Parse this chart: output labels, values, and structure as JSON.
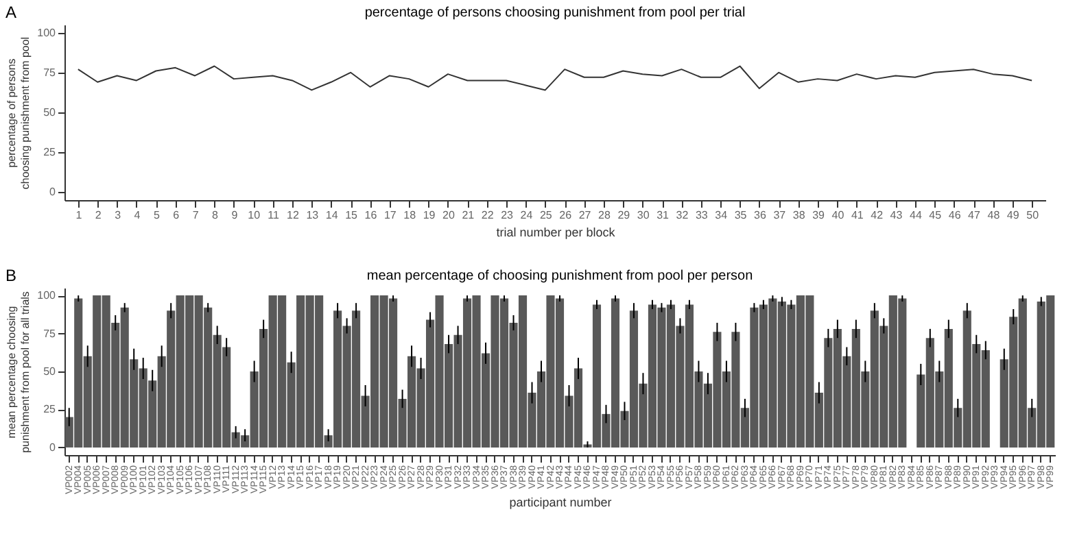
{
  "chart_data": [
    {
      "type": "line",
      "title": "percentage of persons choosing punishment from pool per trial",
      "xlabel": "trial number per block",
      "ylabel": "percentage of persons choosing punishment from pool",
      "annotations": [
        "A"
      ],
      "x": [
        1,
        2,
        3,
        4,
        5,
        6,
        7,
        8,
        9,
        10,
        11,
        12,
        13,
        14,
        15,
        16,
        17,
        18,
        19,
        20,
        21,
        22,
        23,
        24,
        25,
        26,
        27,
        28,
        29,
        30,
        31,
        32,
        33,
        34,
        35,
        36,
        37,
        38,
        39,
        40,
        41,
        42,
        43,
        44,
        45,
        46,
        47,
        48,
        49,
        50
      ],
      "series": [
        {
          "color": "#333333",
          "values": [
            77,
            69,
            73,
            70,
            76,
            78,
            73,
            79,
            71,
            72,
            73,
            70,
            64,
            69,
            75,
            66,
            73,
            71,
            66,
            74,
            70,
            70,
            70,
            67,
            64,
            77,
            72,
            72,
            76,
            74,
            73,
            77,
            72,
            72,
            79,
            65,
            75,
            69,
            71,
            70,
            74,
            71,
            73,
            72,
            75,
            76,
            77,
            74,
            73,
            70
          ]
        }
      ],
      "xlim": [
        0.3,
        50.7
      ],
      "xticks": [
        1,
        2,
        3,
        4,
        5,
        6,
        7,
        8,
        9,
        10,
        11,
        12,
        13,
        14,
        15,
        16,
        17,
        18,
        19,
        20,
        21,
        22,
        23,
        24,
        25,
        26,
        27,
        28,
        29,
        30,
        31,
        32,
        33,
        34,
        35,
        36,
        37,
        38,
        39,
        40,
        41,
        42,
        43,
        44,
        45,
        46,
        47,
        48,
        49,
        50
      ],
      "ylim": [
        -5,
        105
      ],
      "yticks": [
        0,
        25,
        50,
        75,
        100
      ],
      "grid": false,
      "legend": false
    },
    {
      "type": "bar",
      "title": "mean percentage of choosing punishment from pool per person",
      "xlabel": "participant number",
      "ylabel": "mean percentage choosing punishment from pool for all trials",
      "annotations": [
        "B"
      ],
      "categories": [
        "VP002",
        "VP004",
        "VP005",
        "VP006",
        "VP007",
        "VP008",
        "VP009",
        "VP100",
        "VP101",
        "VP102",
        "VP103",
        "VP104",
        "VP105",
        "VP106",
        "VP107",
        "VP108",
        "VP110",
        "VP111",
        "VP112",
        "VP113",
        "VP114",
        "VP115",
        "VP12",
        "VP13",
        "VP14",
        "VP15",
        "VP16",
        "VP17",
        "VP18",
        "VP19",
        "VP20",
        "VP21",
        "VP22",
        "VP23",
        "VP24",
        "VP25",
        "VP26",
        "VP27",
        "VP28",
        "VP29",
        "VP30",
        "VP31",
        "VP32",
        "VP33",
        "VP34",
        "VP35",
        "VP36",
        "VP37",
        "VP38",
        "VP39",
        "VP40",
        "VP41",
        "VP42",
        "VP43",
        "VP44",
        "VP45",
        "VP46",
        "VP47",
        "VP48",
        "VP49",
        "VP50",
        "VP51",
        "VP52",
        "VP53",
        "VP54",
        "VP55",
        "VP56",
        "VP57",
        "VP58",
        "VP59",
        "VP60",
        "VP61",
        "VP62",
        "VP63",
        "VP64",
        "VP65",
        "VP66",
        "VP67",
        "VP68",
        "VP69",
        "VP70",
        "VP71",
        "VP74",
        "VP75",
        "VP77",
        "VP78",
        "VP79",
        "VP80",
        "VP81",
        "VP82",
        "VP83",
        "VP84",
        "VP85",
        "VP86",
        "VP87",
        "VP88",
        "VP89",
        "VP90",
        "VP91",
        "VP92",
        "VP93",
        "VP94",
        "VP95",
        "VP96",
        "VP97",
        "VP98",
        "VP99"
      ],
      "series": [
        {
          "color": "#595959",
          "values": [
            20,
            98,
            60,
            100,
            100,
            82,
            92,
            58,
            52,
            44,
            60,
            90,
            100,
            100,
            100,
            92,
            74,
            66,
            10,
            8,
            50,
            78,
            100,
            100,
            56,
            100,
            100,
            100,
            8,
            90,
            80,
            90,
            34,
            100,
            100,
            98,
            32,
            60,
            52,
            84,
            100,
            68,
            74,
            98,
            100,
            62,
            100,
            98,
            82,
            100,
            36,
            50,
            100,
            98,
            34,
            52,
            2,
            94,
            22,
            98,
            24,
            90,
            42,
            94,
            92,
            94,
            80,
            94,
            50,
            42,
            76,
            50,
            76,
            26,
            92,
            94,
            98,
            96,
            94,
            100,
            100,
            36,
            72,
            78,
            60,
            78,
            50,
            90,
            80,
            100,
            98,
            0,
            48,
            72,
            50,
            78,
            26,
            90,
            68,
            64,
            0,
            58,
            86,
            98,
            26,
            96,
            100
          ],
          "errors": [
            6,
            2,
            7,
            null,
            null,
            5,
            3,
            7,
            7,
            7,
            7,
            5,
            null,
            null,
            null,
            3,
            6,
            6,
            4,
            4,
            7,
            6,
            null,
            null,
            7,
            null,
            null,
            null,
            4,
            5,
            5,
            5,
            7,
            null,
            null,
            2,
            6,
            7,
            7,
            5,
            null,
            6,
            6,
            2,
            null,
            7,
            null,
            2,
            5,
            null,
            7,
            7,
            null,
            2,
            7,
            7,
            2,
            3,
            6,
            2,
            6,
            5,
            7,
            3,
            3,
            3,
            5,
            3,
            7,
            7,
            6,
            7,
            6,
            6,
            3,
            3,
            2,
            3,
            3,
            null,
            null,
            7,
            6,
            6,
            6,
            6,
            7,
            5,
            5,
            null,
            2,
            null,
            7,
            6,
            7,
            6,
            6,
            5,
            6,
            6,
            null,
            7,
            5,
            2,
            6,
            3,
            null
          ]
        }
      ],
      "ylim": [
        -5,
        105
      ],
      "yticks": [
        0,
        25,
        50,
        75,
        100
      ],
      "grid": false,
      "legend": false
    }
  ]
}
